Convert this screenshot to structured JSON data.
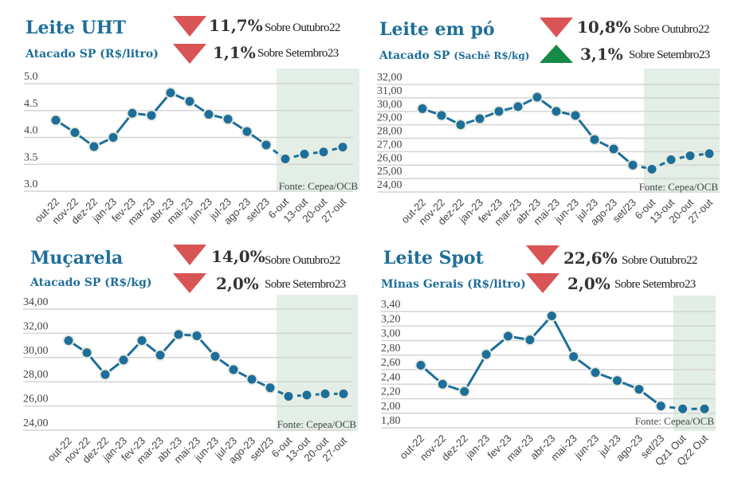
{
  "colors": {
    "line": "#1d6f9b",
    "halo": "#ecebdc",
    "down": "#d95455",
    "up": "#168a47",
    "shade": "#e2eee6",
    "grid": "#d4d4d4",
    "title": "#1f6e99"
  },
  "chart_data": [
    {
      "type": "line",
      "title": "Leite UHT",
      "subtitle": "Atacado SP (R$/litro)",
      "change_1": {
        "value": "11,7%",
        "label": "Sobre Outubro22",
        "direction": "down"
      },
      "change_2": {
        "value": "1,1%",
        "label": "Sobre Setembro23",
        "direction": "down"
      },
      "ylim": [
        3.0,
        5.0
      ],
      "yticks": [
        "3.0",
        "3.5",
        "4.0",
        "4.5",
        "5.0"
      ],
      "ytick_values": [
        3.0,
        3.5,
        4.0,
        4.5,
        5.0
      ],
      "categories": [
        "out-22",
        "nov-22",
        "dez-22",
        "jan-23",
        "fev-23",
        "mar-23",
        "abr-23",
        "mai-23",
        "jun-23",
        "jul-23",
        "ago-23",
        "set/23",
        "6-out",
        "13-out",
        "20-out",
        "27-out"
      ],
      "values": [
        4.32,
        4.09,
        3.83,
        4.0,
        4.45,
        4.41,
        4.83,
        4.67,
        4.43,
        4.34,
        4.11,
        3.86,
        3.6,
        3.69,
        3.73,
        3.82
      ],
      "weekly_from_index": 12,
      "source": "Fonte: Cepea/OCB",
      "grid": true
    },
    {
      "type": "line",
      "title": "Leite em pó",
      "subtitle": "Atacado SP",
      "subtitle_small": "(Sachê R$/kg)",
      "change_1": {
        "value": "10,8%",
        "label": "Sobre Outubro22",
        "direction": "down"
      },
      "change_2": {
        "value": "3,1%",
        "label": "Sobre Setembro23",
        "direction": "up"
      },
      "ylim": [
        24,
        32
      ],
      "yticks": [
        "24,00",
        "25,00",
        "26,00",
        "27,00",
        "28,00",
        "29,00",
        "30,00",
        "31,00",
        "32,00"
      ],
      "ytick_values": [
        24,
        25,
        26,
        27,
        28,
        29,
        30,
        31,
        32
      ],
      "categories": [
        "out-22",
        "nov-22",
        "dez-22",
        "jan-23",
        "fev-23",
        "mar-23",
        "abr-23",
        "mai-23",
        "jun-23",
        "jul-23",
        "ago-23",
        "set/23",
        "6-out",
        "13-out",
        "20-out",
        "27-out"
      ],
      "values": [
        30.2,
        29.7,
        29.0,
        29.45,
        30.0,
        30.35,
        31.05,
        30.0,
        29.7,
        27.9,
        27.2,
        26.0,
        25.7,
        26.4,
        26.7,
        26.85
      ],
      "weekly_from_index": 12,
      "source": "Fonte: Cepea/OCB",
      "grid": true
    },
    {
      "type": "line",
      "title": "Muçarela",
      "subtitle": "Atacado SP (R$/kg)",
      "change_1": {
        "value": "14,0%",
        "label": "Sobre Outubro22",
        "direction": "down"
      },
      "change_2": {
        "value": "2,0%",
        "label": "Sobre Setembro23",
        "direction": "down"
      },
      "ylim": [
        24,
        34
      ],
      "yticks": [
        "24,00",
        "26,00",
        "28,00",
        "30,00",
        "32,00",
        "34,00"
      ],
      "ytick_values": [
        24,
        26,
        28,
        30,
        32,
        34
      ],
      "categories": [
        "out-22",
        "nov-22",
        "dez-22",
        "jan-23",
        "fev-23",
        "mar-23",
        "abr-23",
        "mai-23",
        "jun-23",
        "jul-23",
        "ago-23",
        "set/23",
        "6-out",
        "13-out",
        "20-out",
        "27-out"
      ],
      "values": [
        31.4,
        30.4,
        28.6,
        29.8,
        31.4,
        30.2,
        31.9,
        31.8,
        30.1,
        29.0,
        28.2,
        27.5,
        26.8,
        26.9,
        27.0,
        27.0
      ],
      "weekly_from_index": 12,
      "source": "Fonte: Cepea/OCB",
      "grid": true
    },
    {
      "type": "line",
      "title": "Leite Spot",
      "subtitle": "Minas Gerais (R$/litro)",
      "change_1": {
        "value": "22,6%",
        "label": "Sobre Outubro22",
        "direction": "down"
      },
      "change_2": {
        "value": "2,0%",
        "label": "Sobre Setembro23",
        "direction": "down"
      },
      "ylim": [
        1.8,
        3.4
      ],
      "yticks": [
        "1,80",
        "2,00",
        "2,20",
        "2,40",
        "2,60",
        "2,80",
        "3,00",
        "3,20",
        "3,40"
      ],
      "ytick_values": [
        1.8,
        2.0,
        2.2,
        2.4,
        2.6,
        2.8,
        3.0,
        3.2,
        3.4
      ],
      "categories": [
        "out-22",
        "nov-22",
        "dez-22",
        "jan-23",
        "fev-23",
        "mar-23",
        "abr-23",
        "mai-23",
        "jun-23",
        "jul-23",
        "ago-23",
        "set/23",
        "Qz1 Out",
        "Qz2 Out"
      ],
      "values": [
        2.66,
        2.4,
        2.3,
        2.81,
        3.06,
        3.01,
        3.34,
        2.78,
        2.56,
        2.45,
        2.33,
        2.1,
        2.06,
        2.06
      ],
      "weekly_from_index": 12,
      "source": "Fonte: Cepea/OCB",
      "grid": true
    }
  ]
}
